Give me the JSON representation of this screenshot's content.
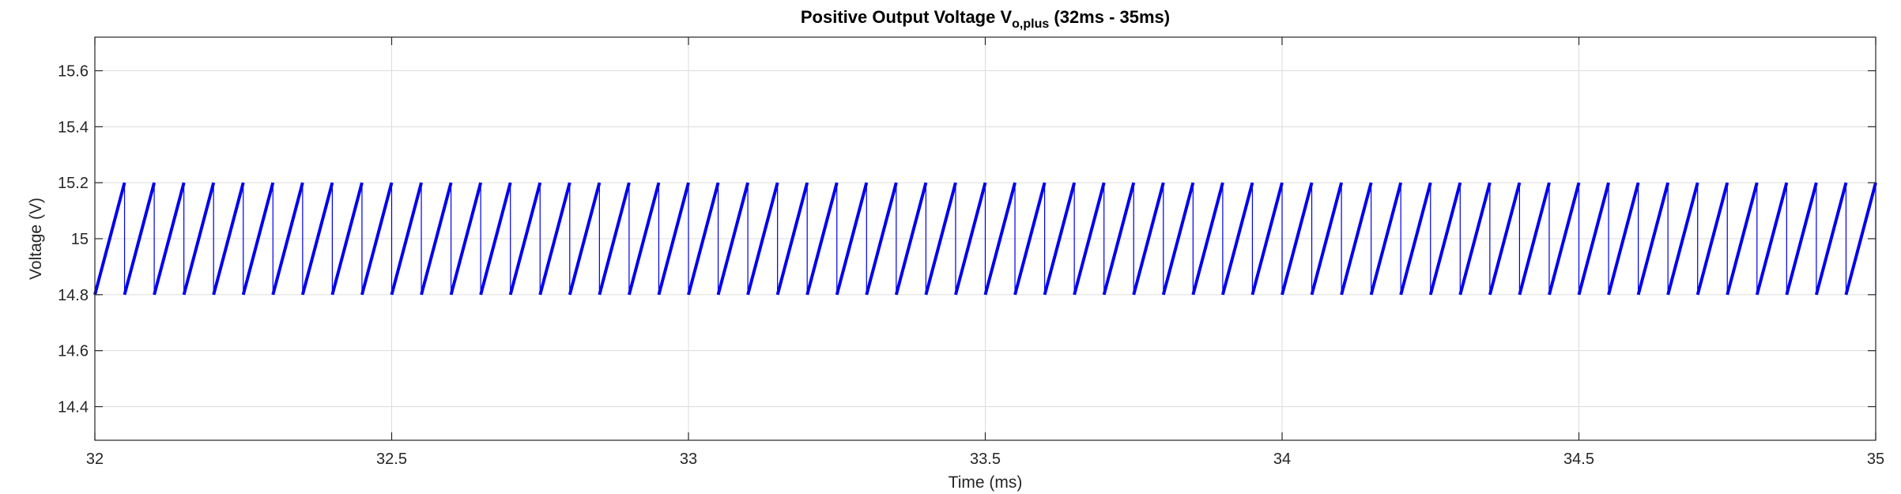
{
  "chart_data": {
    "type": "line",
    "title": {
      "prefix": "Positive Output Voltage V",
      "subscript": "o,plus",
      "suffix": " (32ms - 35ms)"
    },
    "xlabel": "Time (ms)",
    "ylabel": "Voltage (V)",
    "xlim": [
      32,
      35
    ],
    "ylim": [
      14.28,
      15.72
    ],
    "x_ticks": [
      32,
      32.5,
      33,
      33.5,
      34,
      34.5,
      35
    ],
    "x_tick_labels": [
      "32",
      "32.5",
      "33",
      "33.5",
      "34",
      "34.5",
      "35"
    ],
    "y_ticks": [
      14.4,
      14.6,
      14.8,
      15,
      15.2,
      15.4,
      15.6
    ],
    "y_tick_labels": [
      "14.4",
      "14.6",
      "14.8",
      "15",
      "15.2",
      "15.4",
      "15.6"
    ],
    "grid": true,
    "series": [
      {
        "color": "#0000ee",
        "waveform": "sawtooth",
        "period_ms": 0.05,
        "first_reset_ms": 32.05,
        "min_v": 14.8,
        "max_v": 15.2
      }
    ]
  }
}
